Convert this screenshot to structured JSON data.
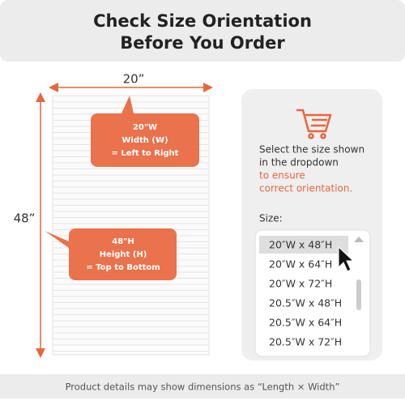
{
  "header": {
    "title_lines": [
      "Check Size Orientation",
      "Before You Order"
    ]
  },
  "shade": {
    "width_label": "20”",
    "height_label": "48”",
    "width_callout": [
      "20\"W",
      "Width (W)",
      "= Left to Right"
    ],
    "height_callout": [
      "48\"H",
      "Height (H)",
      "= Top to Bottom"
    ]
  },
  "panel": {
    "text_lines": [
      "Select the size shown",
      "in the dropdown"
    ],
    "highlight_lines": [
      "to ensure",
      "correct orientation."
    ],
    "size_label": "Size:",
    "options": [
      "20″W x 48″H",
      "20″W x 64″H",
      "20″W x 72″H",
      "20.5″W x 48″H",
      "20.5″W x 64″H",
      "20.5″W x 72″H"
    ]
  },
  "footer": {
    "text": "Product details may show dimensions as “Length × Width”"
  }
}
